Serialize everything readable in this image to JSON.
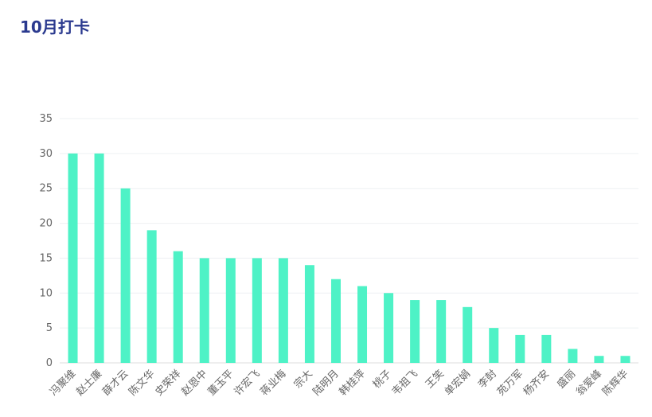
{
  "chart_data": {
    "type": "bar",
    "title": "10月打卡",
    "categories": [
      "冯聚维",
      "赵士廉",
      "薛才云",
      "陈文华",
      "史荣祥",
      "赵恩中",
      "董玉平",
      "许宏飞",
      "蒋业梅",
      "宗大",
      "陆明月",
      "韩桂萍",
      "桃子",
      "韦祖飞",
      "王笑",
      "单宏娟",
      "李尌",
      "苑万军",
      "杨齐安",
      "盛丽",
      "翁爱峰",
      "陈辉华"
    ],
    "values": [
      30,
      30,
      25,
      19,
      16,
      15,
      15,
      15,
      15,
      14,
      12,
      11,
      10,
      9,
      9,
      8,
      5,
      4,
      4,
      2,
      1,
      1
    ],
    "color": "#4ef2c6",
    "ylim": [
      0,
      35
    ],
    "yticks": [
      0,
      5,
      10,
      15,
      20,
      25,
      30,
      35
    ],
    "grid": true
  }
}
